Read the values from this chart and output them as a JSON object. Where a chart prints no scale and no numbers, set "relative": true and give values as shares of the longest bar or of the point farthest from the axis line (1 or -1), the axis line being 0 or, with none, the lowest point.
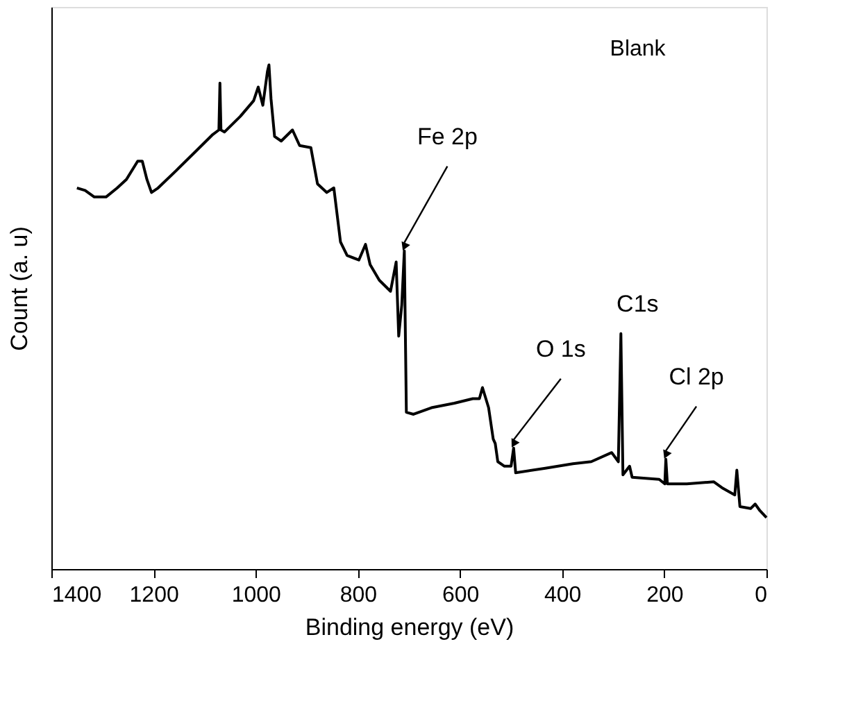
{
  "chart_data": {
    "type": "line",
    "relative": true,
    "xlabel": "Binding energy (eV)",
    "ylabel": "Count (a. u)",
    "xlim": [
      1400,
      0
    ],
    "xticks": [
      0,
      200,
      400,
      600,
      800,
      1000,
      1200,
      1400
    ],
    "grid": false,
    "marker": "none",
    "line_style": "solid",
    "annotations": [
      "Blank",
      {
        "text": "Fe 2p",
        "x": 709,
        "y": 0.631
      },
      {
        "text": "O 1s",
        "x": 495,
        "y": 0.24
      },
      {
        "text": "C1s",
        "x": 285,
        "y": 0.467
      },
      {
        "text": "Cl 2p",
        "x": 197,
        "y": 0.218
      }
    ],
    "x": [
      1350,
      1334,
      1316,
      1293,
      1271,
      1253,
      1231,
      1222,
      1213,
      1204,
      1191,
      1155,
      1119,
      1084,
      1072,
      1070,
      1068,
      1061,
      1030,
      1004,
      995,
      986,
      977,
      974,
      970,
      963,
      950,
      928,
      914,
      892,
      879,
      861,
      847,
      834,
      821,
      798,
      785,
      776,
      758,
      736,
      725,
      720,
      714,
      709,
      705,
      691,
      656,
      611,
      575,
      562,
      556,
      544,
      535,
      531,
      526,
      513,
      500,
      495,
      491,
      433,
      379,
      343,
      303,
      290,
      285,
      281,
      268,
      263,
      210,
      199,
      197,
      194,
      156,
      103,
      85,
      62,
      58,
      52,
      31,
      22,
      13,
      0
    ],
    "series": [
      {
        "color": "#000000",
        "values": [
          0.756,
          0.751,
          0.738,
          0.738,
          0.756,
          0.773,
          0.809,
          0.809,
          0.773,
          0.747,
          0.756,
          0.791,
          0.827,
          0.862,
          0.871,
          0.964,
          0.871,
          0.867,
          0.898,
          0.929,
          0.956,
          0.92,
          0.987,
          1.0,
          0.933,
          0.858,
          0.849,
          0.871,
          0.84,
          0.836,
          0.764,
          0.747,
          0.756,
          0.649,
          0.622,
          0.613,
          0.644,
          0.604,
          0.573,
          0.551,
          0.609,
          0.462,
          0.524,
          0.631,
          0.311,
          0.307,
          0.32,
          0.329,
          0.338,
          0.338,
          0.36,
          0.32,
          0.258,
          0.249,
          0.213,
          0.204,
          0.204,
          0.24,
          0.191,
          0.2,
          0.209,
          0.213,
          0.231,
          0.213,
          0.467,
          0.187,
          0.204,
          0.182,
          0.178,
          0.169,
          0.218,
          0.169,
          0.169,
          0.173,
          0.16,
          0.147,
          0.196,
          0.124,
          0.12,
          0.129,
          0.116,
          0.102
        ]
      }
    ]
  }
}
